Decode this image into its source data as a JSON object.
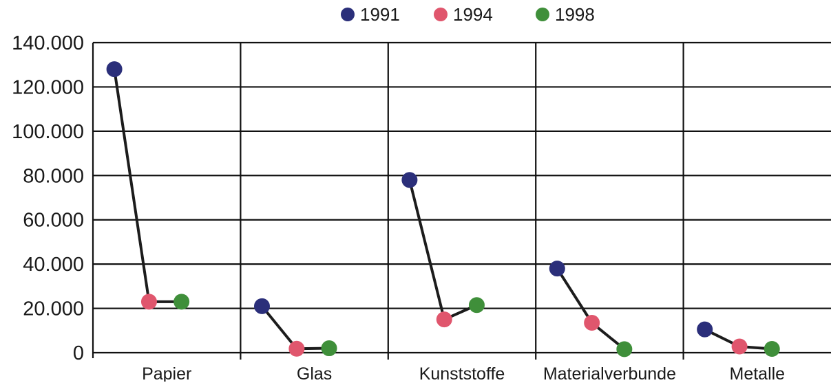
{
  "chart_data": {
    "type": "line",
    "categories": [
      "Papier",
      "Glas",
      "Kunststoffe",
      "Materialverbunde",
      "Metalle"
    ],
    "series": [
      {
        "name": "1991",
        "color": "#2b2f7a",
        "values": [
          128000,
          21000,
          78000,
          38000,
          10500
        ]
      },
      {
        "name": "1994",
        "color": "#e0566d",
        "values": [
          23000,
          1800,
          15000,
          13500,
          2800
        ]
      },
      {
        "name": "1998",
        "color": "#3f8f3a",
        "values": [
          23000,
          2000,
          21500,
          1600,
          1700
        ]
      }
    ],
    "ylim": [
      0,
      140000
    ],
    "yticks": [
      0,
      20000,
      40000,
      60000,
      80000,
      100000,
      120000,
      140000
    ],
    "ytick_labels": [
      "0",
      "20.000",
      "40.000",
      "60.000",
      "80.000",
      "100.000",
      "120.000",
      "140.000"
    ],
    "grid": true,
    "legend_position": "top-center",
    "title": "",
    "xlabel": "",
    "ylabel": ""
  }
}
